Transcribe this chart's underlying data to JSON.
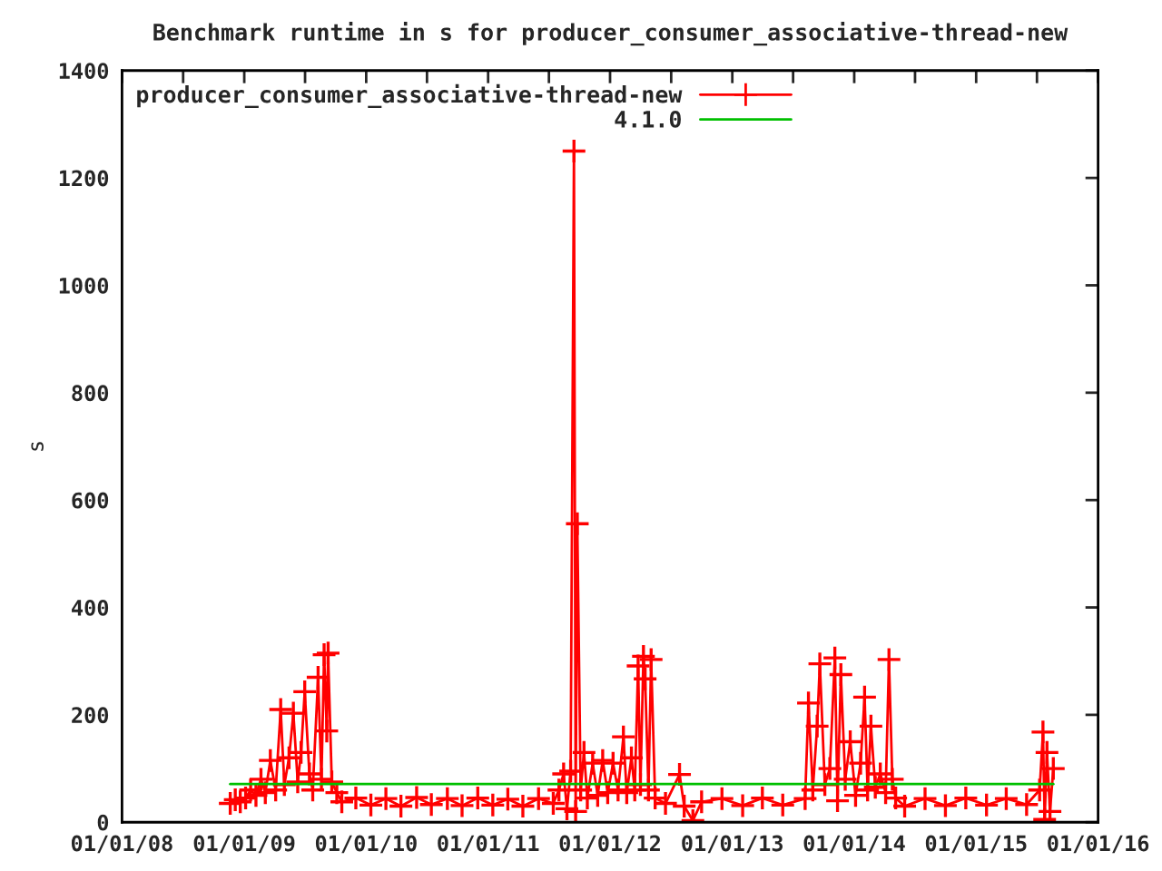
{
  "chart_data": {
    "type": "line",
    "title": "Benchmark runtime in s for producer_consumer_associative-thread-new",
    "ylabel": "s",
    "xlim": [
      "2008-01-01",
      "2016-01-01"
    ],
    "xticks": [
      {
        "value": "2008-01-01",
        "label": "01/01/08"
      },
      {
        "value": "2008-07-02",
        "label": null
      },
      {
        "value": "2009-01-01",
        "label": "01/01/09"
      },
      {
        "value": "2009-07-02",
        "label": null
      },
      {
        "value": "2010-01-01",
        "label": "01/01/10"
      },
      {
        "value": "2010-07-02",
        "label": null
      },
      {
        "value": "2011-01-01",
        "label": "01/01/11"
      },
      {
        "value": "2011-07-02",
        "label": null
      },
      {
        "value": "2012-01-01",
        "label": "01/01/12"
      },
      {
        "value": "2012-07-02",
        "label": null
      },
      {
        "value": "2013-01-01",
        "label": "01/01/13"
      },
      {
        "value": "2013-07-02",
        "label": null
      },
      {
        "value": "2014-01-01",
        "label": "01/01/14"
      },
      {
        "value": "2014-07-02",
        "label": null
      },
      {
        "value": "2015-01-01",
        "label": "01/01/15"
      },
      {
        "value": "2015-07-02",
        "label": null
      },
      {
        "value": "2016-01-01",
        "label": "01/01/16"
      }
    ],
    "ylim": [
      0,
      1400
    ],
    "yticks": [
      0,
      200,
      400,
      600,
      800,
      1000,
      1200,
      1400
    ],
    "grid": false,
    "legend": "top left",
    "marker": "cross",
    "line_style": "solid",
    "series": [
      {
        "name": "producer_consumer_associative-thread-new",
        "color": "#ff0000",
        "x": [
          "2008-11-20",
          "2008-12-05",
          "2008-12-20",
          "2009-01-05",
          "2009-01-20",
          "2009-02-05",
          "2009-02-20",
          "2009-03-05",
          "2009-03-20",
          "2009-04-05",
          "2009-04-20",
          "2009-05-01",
          "2009-05-15",
          "2009-05-28",
          "2009-06-10",
          "2009-06-20",
          "2009-07-01",
          "2009-07-15",
          "2009-07-25",
          "2009-08-10",
          "2009-08-20",
          "2009-08-28",
          "2009-09-05",
          "2009-09-09",
          "2009-09-20",
          "2009-10-05",
          "2009-10-20",
          "2009-12-01",
          "2010-01-15",
          "2010-03-01",
          "2010-04-15",
          "2010-06-01",
          "2010-07-15",
          "2010-09-01",
          "2010-10-15",
          "2010-12-01",
          "2011-01-15",
          "2011-03-01",
          "2011-04-15",
          "2011-06-01",
          "2011-07-15",
          "2011-08-01",
          "2011-08-15",
          "2011-08-25",
          "2011-09-05",
          "2011-09-15",
          "2011-09-20",
          "2011-09-25",
          "2011-10-05",
          "2011-10-15",
          "2011-10-25",
          "2011-11-10",
          "2011-11-25",
          "2011-12-10",
          "2011-12-25",
          "2012-01-10",
          "2012-01-25",
          "2012-02-10",
          "2012-02-20",
          "2012-03-05",
          "2012-03-15",
          "2012-03-25",
          "2012-04-01",
          "2012-04-10",
          "2012-04-15",
          "2012-04-25",
          "2012-05-03",
          "2012-05-15",
          "2012-06-15",
          "2012-07-27",
          "2012-08-10",
          "2012-09-05",
          "2012-10-01",
          "2012-12-01",
          "2013-02-01",
          "2013-04-01",
          "2013-06-01",
          "2013-08-07",
          "2013-08-17",
          "2013-08-30",
          "2013-09-12",
          "2013-09-20",
          "2013-10-05",
          "2013-10-20",
          "2013-11-04",
          "2013-11-12",
          "2013-11-22",
          "2013-12-05",
          "2013-12-20",
          "2014-01-05",
          "2014-01-20",
          "2014-02-01",
          "2014-02-10",
          "2014-02-20",
          "2014-03-05",
          "2014-03-20",
          "2014-04-05",
          "2014-04-15",
          "2014-04-25",
          "2014-05-05",
          "2014-06-01",
          "2014-08-01",
          "2014-10-01",
          "2014-12-01",
          "2015-02-01",
          "2015-04-01",
          "2015-06-01",
          "2015-07-10",
          "2015-07-20",
          "2015-07-25",
          "2015-08-01",
          "2015-08-10",
          "2015-08-20"
        ],
        "values": [
          35,
          42,
          38,
          45,
          60,
          50,
          80,
          55,
          115,
          60,
          210,
          70,
          120,
          203,
          75,
          130,
          243,
          90,
          60,
          270,
          80,
          312,
          170,
          315,
          75,
          55,
          38,
          45,
          32,
          44,
          30,
          46,
          33,
          44,
          31,
          45,
          32,
          43,
          30,
          44,
          35,
          60,
          90,
          25,
          95,
          1250,
          20,
          556,
          60,
          130,
          45,
          110,
          50,
          115,
          55,
          110,
          60,
          159,
          55,
          120,
          60,
          291,
          70,
          309,
          267,
          60,
          303,
          45,
          35,
          89,
          30,
          3,
          38,
          44,
          31,
          45,
          32,
          44,
          222,
          60,
          179,
          295,
          70,
          100,
          306,
          40,
          275,
          80,
          150,
          50,
          110,
          233,
          60,
          179,
          65,
          90,
          55,
          303,
          80,
          45,
          30,
          44,
          31,
          45,
          32,
          44,
          33,
          60,
          168,
          5,
          130,
          20,
          100
        ]
      },
      {
        "name": "4.1.0",
        "color": "#00c000",
        "marker": "none",
        "x": [
          "2008-11-20",
          "2015-08-20"
        ],
        "values": [
          71,
          71
        ]
      }
    ]
  }
}
